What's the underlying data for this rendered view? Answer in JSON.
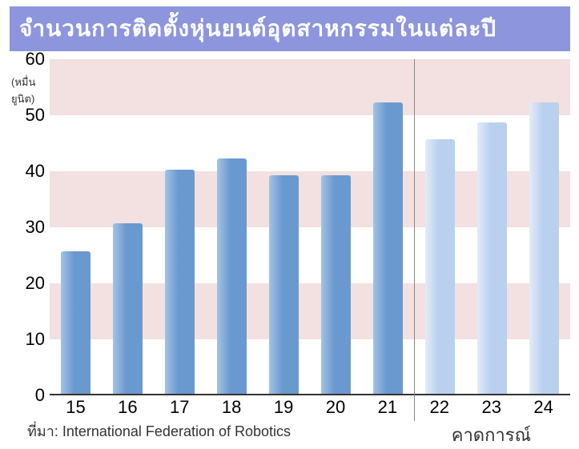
{
  "title": "จำนวนการติดตั้งหุ่นยนต์อุตสาหกรรมในแต่ละปี",
  "title_bg": "#8d95dc",
  "title_color": "#ffffff",
  "chart": {
    "type": "bar",
    "categories": [
      "15",
      "16",
      "17",
      "18",
      "19",
      "20",
      "21",
      "22",
      "23",
      "24"
    ],
    "values": [
      25.5,
      30.5,
      40,
      42,
      39,
      39,
      52,
      45.5,
      48.5,
      52
    ],
    "bar_colors": [
      "#6a99cf",
      "#6a99cf",
      "#6a99cf",
      "#6a99cf",
      "#6a99cf",
      "#6a99cf",
      "#6a99cf",
      "#b9d0ef",
      "#b9d0ef",
      "#b9d0ef"
    ],
    "bar_gradient_light": [
      "#a4c2e4",
      "#a4c2e4",
      "#a4c2e4",
      "#a4c2e4",
      "#a4c2e4",
      "#a4c2e4",
      "#a4c2e4",
      "#e2ecf9",
      "#e2ecf9",
      "#e2ecf9"
    ],
    "ylim": [
      0,
      60
    ],
    "ytick_step": 10,
    "y_unit_label": "(หมื่นยูนิต)",
    "band_color": "#e7c9c7",
    "background": "#ffffff",
    "x_label_fontsize": 22,
    "y_label_fontsize": 22,
    "divider_after_index": 6,
    "forecast_label": "คาดการณ์"
  },
  "source_prefix": "ที่มา:",
  "source_text": "International Federation of Robotics"
}
